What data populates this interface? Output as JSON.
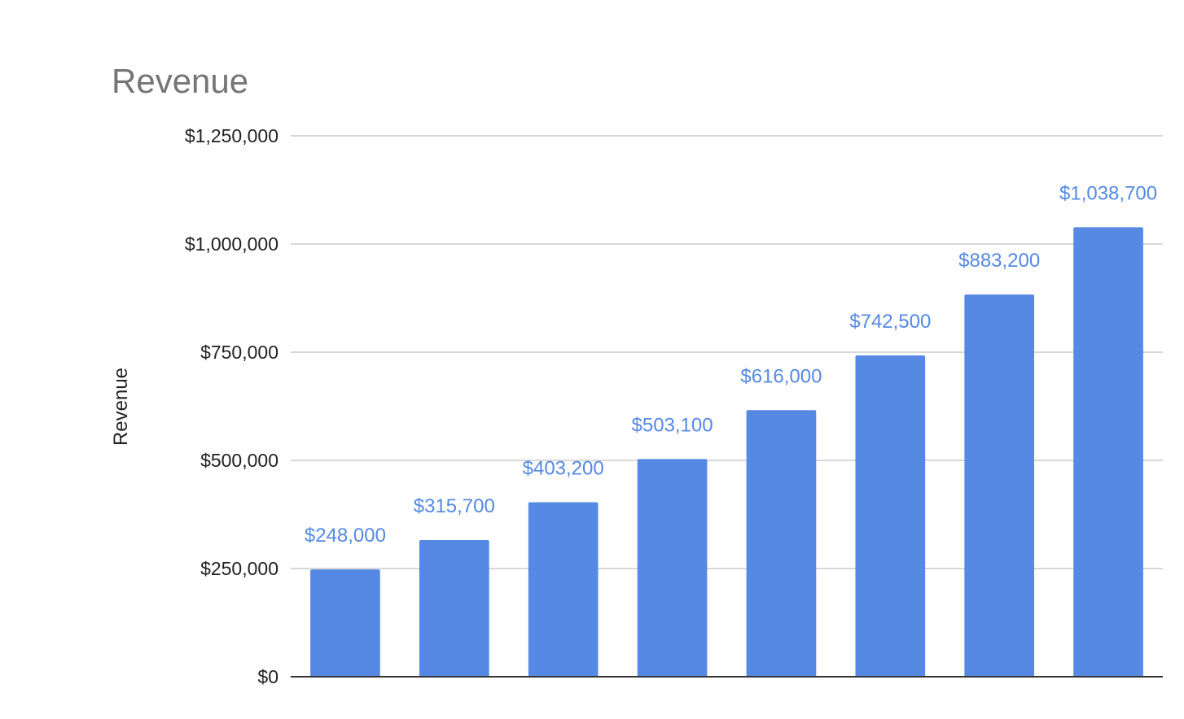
{
  "chart_data": {
    "type": "bar",
    "title": "Revenue",
    "xlabel": "",
    "ylabel": "Revenue",
    "categories": [
      "",
      "",
      "",
      "",
      "",
      "",
      "",
      ""
    ],
    "values": [
      248000,
      315700,
      403200,
      503100,
      616000,
      742500,
      883200,
      1038700
    ],
    "data_labels": [
      "$248,000",
      "$315,700",
      "$403,200",
      "$503,100",
      "$616,000",
      "$742,500",
      "$883,200",
      "$1,038,700"
    ],
    "ylim": [
      0,
      1250000
    ],
    "yticks": [
      0,
      250000,
      500000,
      750000,
      1000000,
      1250000
    ],
    "ytick_labels": [
      "$0",
      "$250,000",
      "$500,000",
      "$750,000",
      "$1,000,000",
      "$1,250,000"
    ],
    "grid": true,
    "legend": "none",
    "bar_color": "#5589e3",
    "label_color": "#5589e3",
    "grid_color": "#cccccc",
    "axis_color": "#333333"
  }
}
